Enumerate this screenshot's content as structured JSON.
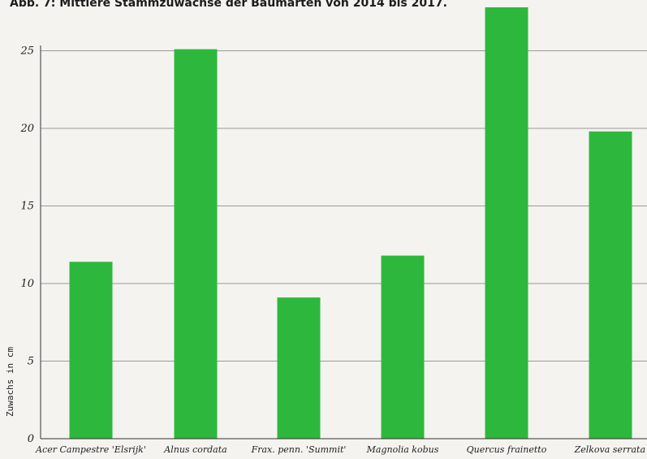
{
  "chart_data": {
    "type": "bar",
    "title": "Abb. 7: Mittlere Stammzuwächse der Baumarten von 2014 bis 2017.",
    "xlabel": "",
    "ylabel": "Zuwachs in cm",
    "categories": [
      "Acer Campestre 'Elsrijk'",
      "Alnus cordata",
      "Frax. penn. 'Summit'",
      "Magnolia kobus",
      "Quercus frainetto",
      "Zelkova serrata"
    ],
    "values": [
      11.4,
      25.1,
      9.1,
      11.8,
      27.8,
      19.8
    ],
    "ylim": [
      0,
      28
    ],
    "yticks": [
      "0",
      "5",
      "10",
      "15",
      "20",
      "25"
    ],
    "grid": true,
    "bar_color": "#2db83d",
    "grid_color": "#9a9a9a",
    "axis_color": "#333333"
  }
}
